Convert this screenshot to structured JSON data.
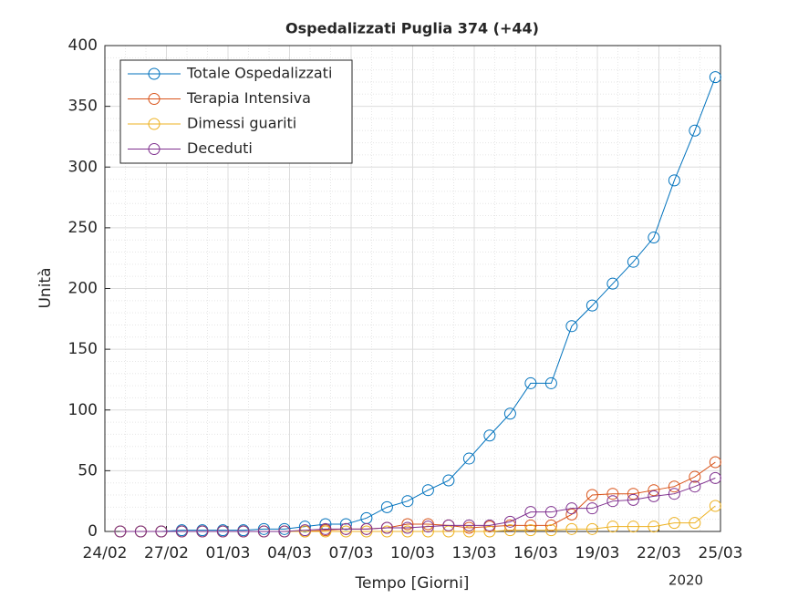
{
  "chart_data": {
    "type": "line",
    "title": "Ospedalizzati Puglia 374 (+44)",
    "xlabel": "Tempo [Giorni]",
    "ylabel": "Unità",
    "x_secondary_label": "2020",
    "x": [
      "2020-02-24T18:00",
      "2020-02-25T18:00",
      "2020-02-26T18:00",
      "2020-02-27T18:00",
      "2020-02-28T18:00",
      "2020-02-29T18:00",
      "2020-03-01T18:00",
      "2020-03-02T18:00",
      "2020-03-03T18:00",
      "2020-03-04T18:00",
      "2020-03-05T18:00",
      "2020-03-06T18:00",
      "2020-03-07T18:00",
      "2020-03-08T18:00",
      "2020-03-09T18:00",
      "2020-03-10T18:00",
      "2020-03-11T18:00",
      "2020-03-12T18:00",
      "2020-03-13T18:00",
      "2020-03-14T18:00",
      "2020-03-15T18:00",
      "2020-03-16T18:00",
      "2020-03-17T18:00",
      "2020-03-18T18:00",
      "2020-03-19T18:00",
      "2020-03-20T18:00",
      "2020-03-21T18:00",
      "2020-03-22T18:00",
      "2020-03-23T18:00",
      "2020-03-24T18:00"
    ],
    "series": [
      {
        "name": "Totale Ospedalizzati",
        "color": "#0072BD",
        "values": [
          0,
          0,
          0,
          1,
          1,
          1,
          1,
          2,
          2,
          4,
          6,
          6,
          11,
          20,
          25,
          34,
          42,
          60,
          79,
          97,
          122,
          122,
          169,
          186,
          204,
          222,
          242,
          289,
          330,
          374
        ]
      },
      {
        "name": "Terapia Intensiva",
        "color": "#D95319",
        "values": [
          0,
          0,
          0,
          0,
          0,
          0,
          0,
          0,
          0,
          0,
          1,
          2,
          2,
          3,
          6,
          6,
          5,
          3,
          4,
          5,
          5,
          5,
          14,
          30,
          31,
          31,
          34,
          37,
          45,
          57
        ]
      },
      {
        "name": "Dimessi guariti",
        "color": "#EDB120",
        "values": [
          0,
          0,
          0,
          0,
          0,
          0,
          0,
          0,
          0,
          0,
          0,
          0,
          0,
          0,
          0,
          0,
          0,
          0,
          0,
          1,
          1,
          1,
          2,
          2,
          4,
          4,
          4,
          7,
          7,
          21
        ]
      },
      {
        "name": "Deceduti",
        "color": "#7E2F8E",
        "values": [
          0,
          0,
          0,
          0,
          0,
          0,
          0,
          0,
          0,
          1,
          2,
          2,
          2,
          3,
          3,
          4,
          5,
          5,
          5,
          8,
          16,
          16,
          19,
          19,
          25,
          26,
          29,
          31,
          37,
          44
        ]
      }
    ],
    "xlim": [
      "2020-02-24",
      "2020-03-25"
    ],
    "xticks": [
      {
        "value": "2020-02-24",
        "label": "24/02"
      },
      {
        "value": "2020-02-27",
        "label": "27/02"
      },
      {
        "value": "2020-03-01",
        "label": "01/03"
      },
      {
        "value": "2020-03-04",
        "label": "04/03"
      },
      {
        "value": "2020-03-07",
        "label": "07/03"
      },
      {
        "value": "2020-03-10",
        "label": "10/03"
      },
      {
        "value": "2020-03-13",
        "label": "13/03"
      },
      {
        "value": "2020-03-16",
        "label": "16/03"
      },
      {
        "value": "2020-03-19",
        "label": "19/03"
      },
      {
        "value": "2020-03-22",
        "label": "22/03"
      },
      {
        "value": "2020-03-25",
        "label": "25/03"
      }
    ],
    "ylim": [
      0,
      400
    ],
    "yticks": [
      0,
      50,
      100,
      150,
      200,
      250,
      300,
      350,
      400
    ],
    "grid": true,
    "minor_grid": true,
    "legend": "northwest"
  }
}
